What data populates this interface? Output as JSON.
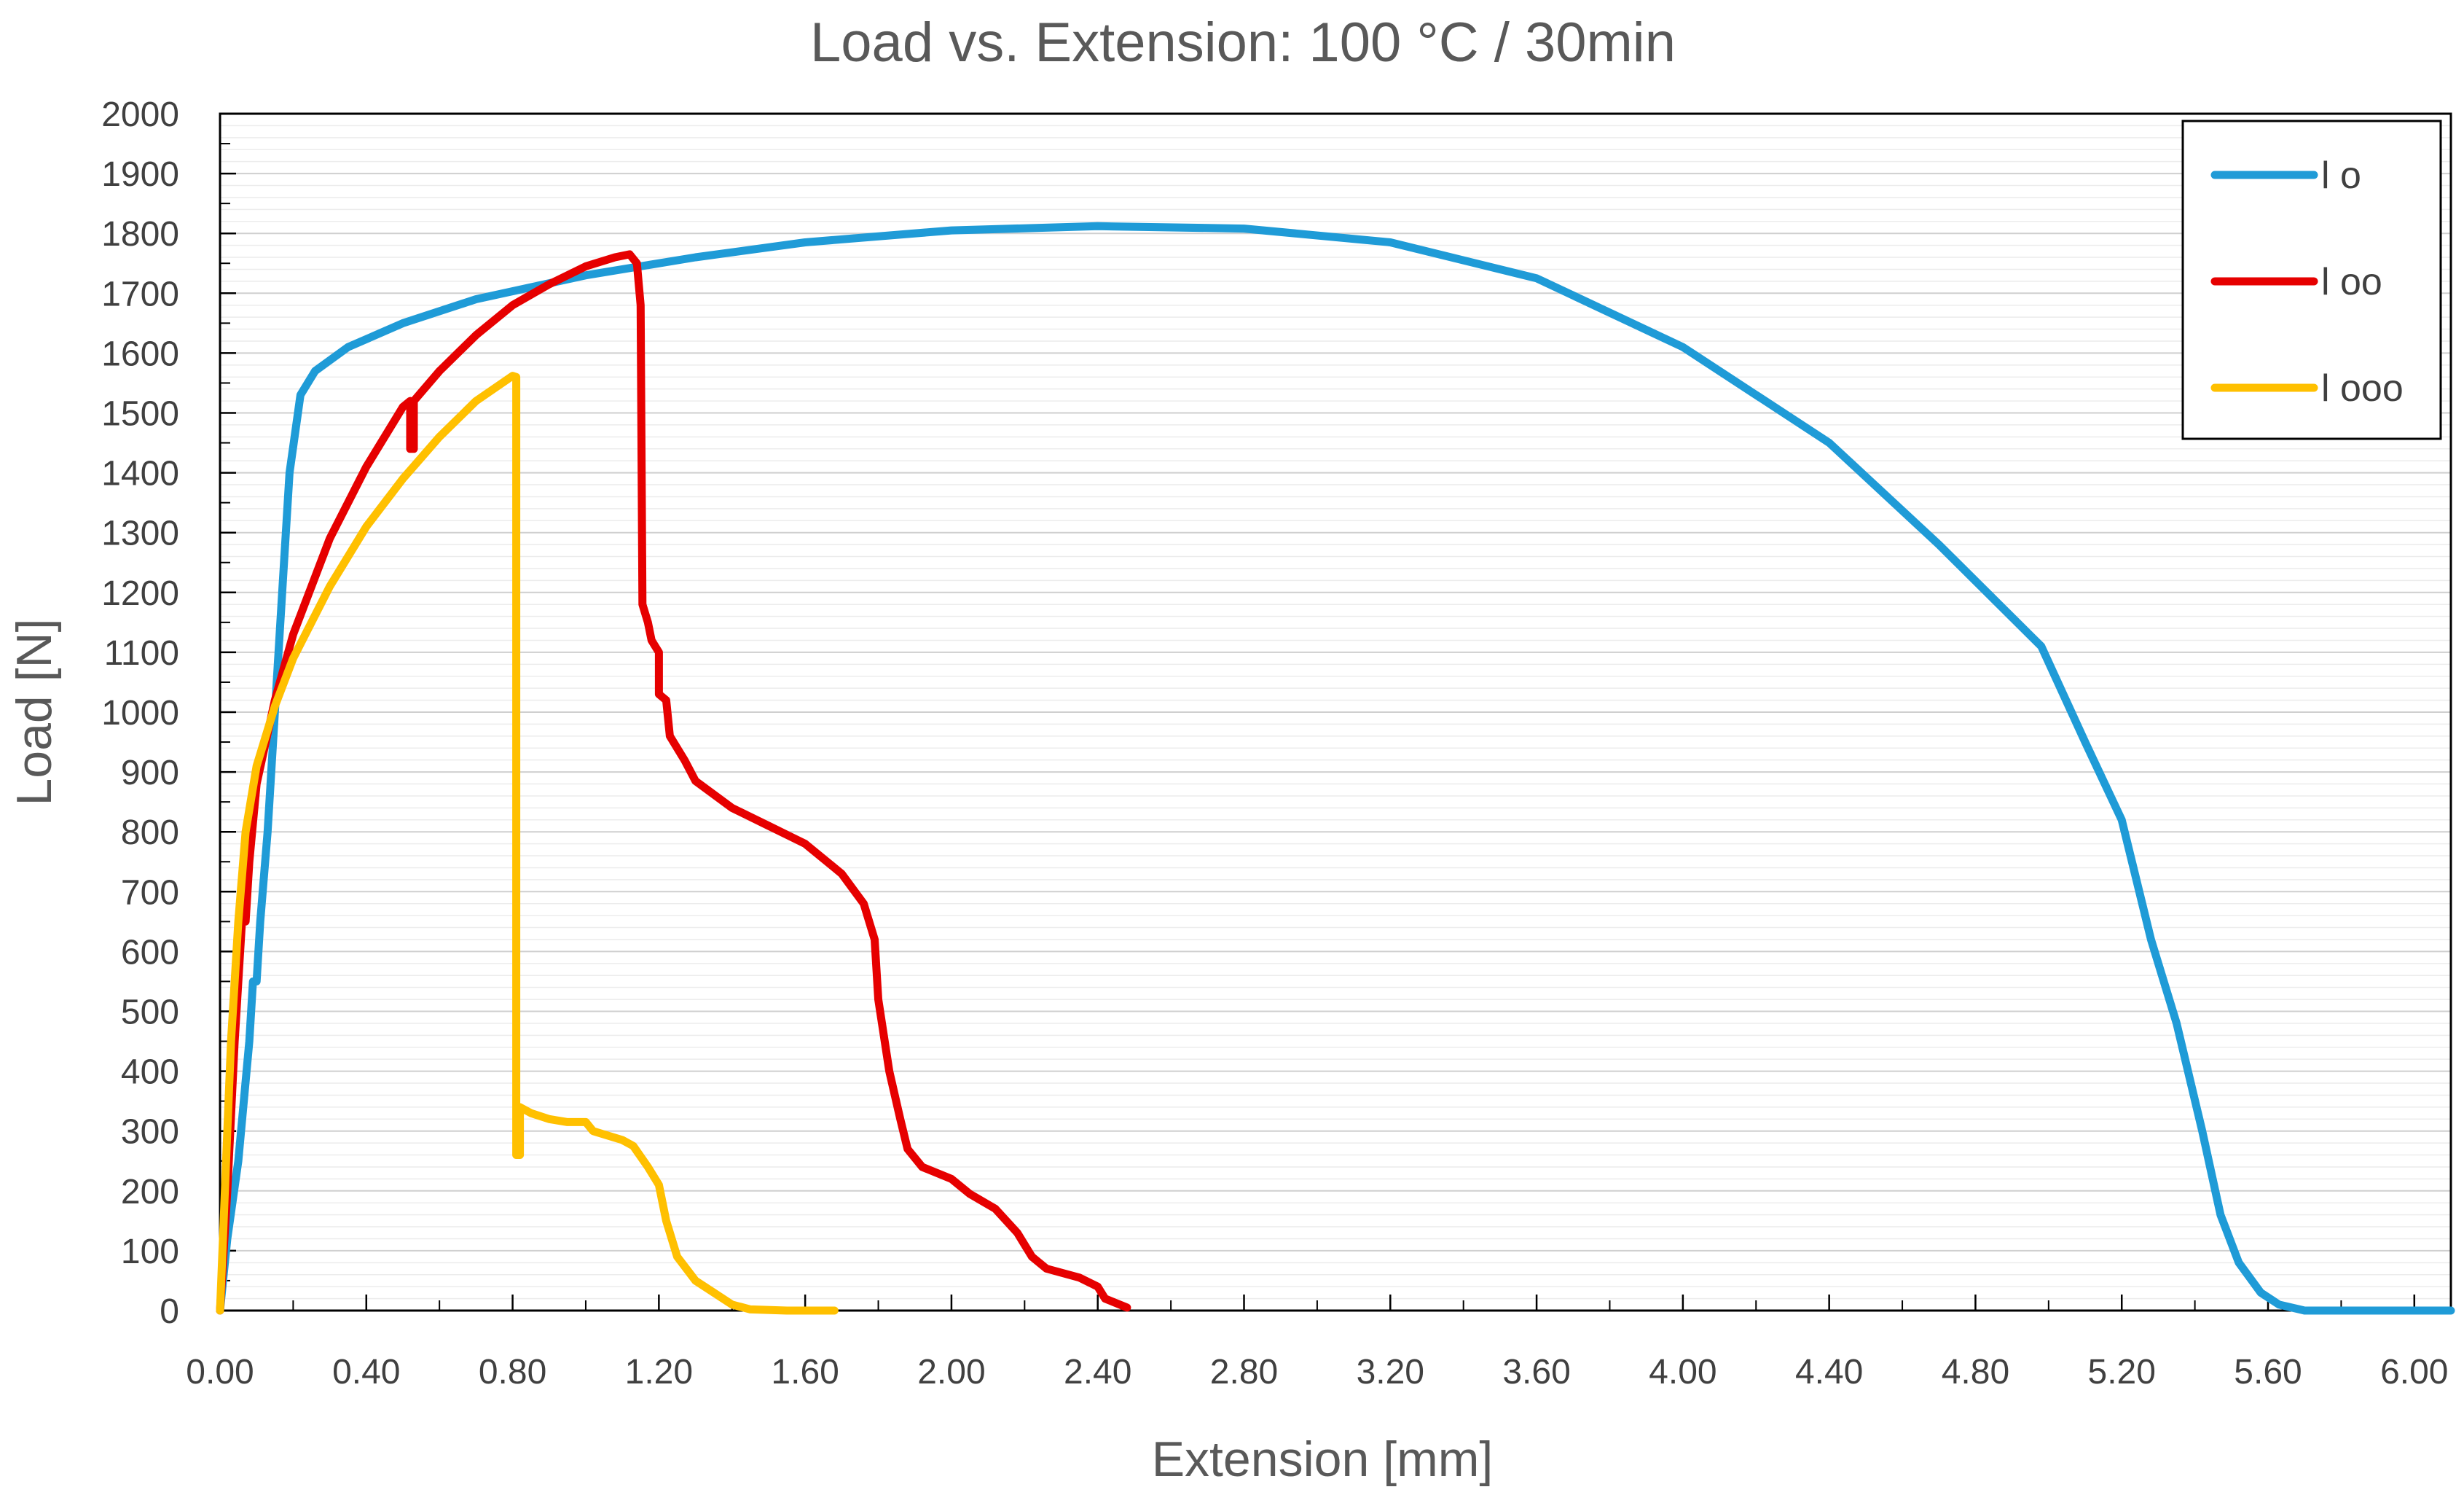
{
  "chart_data": {
    "type": "line",
    "title": "Load vs. Extension: 100 °C / 30min",
    "xlabel": "Extension [mm]",
    "ylabel": "Load [N]",
    "xlim": [
      0,
      6.1
    ],
    "ylim": [
      0,
      2000
    ],
    "x_ticks": [
      "0.00",
      "0.40",
      "0.80",
      "1.20",
      "1.60",
      "2.00",
      "2.40",
      "2.80",
      "3.20",
      "3.60",
      "4.00",
      "4.40",
      "4.80",
      "5.20",
      "5.60",
      "6.00"
    ],
    "x_tick_values": [
      0,
      0.4,
      0.8,
      1.2,
      1.6,
      2.0,
      2.4,
      2.8,
      3.2,
      3.6,
      4.0,
      4.4,
      4.8,
      5.2,
      5.6,
      6.0
    ],
    "y_ticks": [
      "0",
      "100",
      "200",
      "300",
      "400",
      "500",
      "600",
      "700",
      "800",
      "900",
      "1000",
      "1100",
      "1200",
      "1300",
      "1400",
      "1500",
      "1600",
      "1700",
      "1800",
      "1900",
      "2000"
    ],
    "y_tick_values": [
      0,
      100,
      200,
      300,
      400,
      500,
      600,
      700,
      800,
      900,
      1000,
      1100,
      1200,
      1300,
      1400,
      1500,
      1600,
      1700,
      1800,
      1900,
      2000
    ],
    "grid": "horizontal",
    "legend_position": "top-right",
    "series": [
      {
        "name": "l o",
        "color": "#1f9bd7",
        "points": [
          [
            0,
            0
          ],
          [
            0.02,
            120
          ],
          [
            0.05,
            250
          ],
          [
            0.08,
            450
          ],
          [
            0.09,
            550
          ],
          [
            0.1,
            550
          ],
          [
            0.11,
            650
          ],
          [
            0.13,
            800
          ],
          [
            0.15,
            1000
          ],
          [
            0.17,
            1200
          ],
          [
            0.19,
            1400
          ],
          [
            0.22,
            1530
          ],
          [
            0.26,
            1570
          ],
          [
            0.35,
            1610
          ],
          [
            0.5,
            1650
          ],
          [
            0.7,
            1690
          ],
          [
            1.0,
            1730
          ],
          [
            1.3,
            1760
          ],
          [
            1.6,
            1785
          ],
          [
            2.0,
            1805
          ],
          [
            2.4,
            1812
          ],
          [
            2.8,
            1808
          ],
          [
            3.2,
            1785
          ],
          [
            3.6,
            1725
          ],
          [
            4.0,
            1610
          ],
          [
            4.4,
            1450
          ],
          [
            4.7,
            1280
          ],
          [
            4.98,
            1110
          ],
          [
            5.1,
            950
          ],
          [
            5.2,
            820
          ],
          [
            5.28,
            620
          ],
          [
            5.35,
            480
          ],
          [
            5.42,
            300
          ],
          [
            5.47,
            160
          ],
          [
            5.52,
            80
          ],
          [
            5.58,
            30
          ],
          [
            5.63,
            10
          ],
          [
            5.7,
            0
          ],
          [
            6.1,
            0
          ]
        ]
      },
      {
        "name": "l oo",
        "color": "#e60000",
        "points": [
          [
            0,
            0
          ],
          [
            0.02,
            200
          ],
          [
            0.04,
            450
          ],
          [
            0.06,
            650
          ],
          [
            0.07,
            650
          ],
          [
            0.08,
            750
          ],
          [
            0.1,
            880
          ],
          [
            0.15,
            1020
          ],
          [
            0.2,
            1130
          ],
          [
            0.3,
            1290
          ],
          [
            0.4,
            1410
          ],
          [
            0.5,
            1510
          ],
          [
            0.52,
            1520
          ],
          [
            0.52,
            1440
          ],
          [
            0.53,
            1440
          ],
          [
            0.53,
            1520
          ],
          [
            0.6,
            1570
          ],
          [
            0.7,
            1630
          ],
          [
            0.8,
            1680
          ],
          [
            0.9,
            1715
          ],
          [
            1.0,
            1745
          ],
          [
            1.08,
            1760
          ],
          [
            1.12,
            1765
          ],
          [
            1.14,
            1750
          ],
          [
            1.15,
            1680
          ],
          [
            1.155,
            1180
          ],
          [
            1.17,
            1150
          ],
          [
            1.18,
            1120
          ],
          [
            1.2,
            1100
          ],
          [
            1.2,
            1030
          ],
          [
            1.22,
            1020
          ],
          [
            1.23,
            960
          ],
          [
            1.27,
            920
          ],
          [
            1.3,
            885
          ],
          [
            1.4,
            840
          ],
          [
            1.5,
            810
          ],
          [
            1.6,
            780
          ],
          [
            1.7,
            730
          ],
          [
            1.76,
            680
          ],
          [
            1.79,
            620
          ],
          [
            1.8,
            520
          ],
          [
            1.83,
            400
          ],
          [
            1.86,
            320
          ],
          [
            1.88,
            270
          ],
          [
            1.92,
            240
          ],
          [
            2.0,
            220
          ],
          [
            2.05,
            195
          ],
          [
            2.12,
            170
          ],
          [
            2.18,
            130
          ],
          [
            2.22,
            90
          ],
          [
            2.26,
            70
          ],
          [
            2.35,
            55
          ],
          [
            2.4,
            40
          ],
          [
            2.42,
            20
          ],
          [
            2.48,
            5
          ]
        ]
      },
      {
        "name": "l ooo",
        "color": "#ffc000",
        "points": [
          [
            0,
            0
          ],
          [
            0.01,
            150
          ],
          [
            0.02,
            300
          ],
          [
            0.03,
            450
          ],
          [
            0.05,
            650
          ],
          [
            0.07,
            800
          ],
          [
            0.1,
            910
          ],
          [
            0.15,
            1010
          ],
          [
            0.2,
            1090
          ],
          [
            0.3,
            1210
          ],
          [
            0.4,
            1310
          ],
          [
            0.5,
            1390
          ],
          [
            0.6,
            1460
          ],
          [
            0.7,
            1520
          ],
          [
            0.8,
            1562
          ],
          [
            0.81,
            1560
          ],
          [
            0.81,
            260
          ],
          [
            0.82,
            260
          ],
          [
            0.82,
            340
          ],
          [
            0.85,
            330
          ],
          [
            0.9,
            320
          ],
          [
            0.95,
            315
          ],
          [
            1.0,
            315
          ],
          [
            1.02,
            300
          ],
          [
            1.1,
            285
          ],
          [
            1.13,
            275
          ],
          [
            1.17,
            240
          ],
          [
            1.2,
            210
          ],
          [
            1.22,
            150
          ],
          [
            1.25,
            90
          ],
          [
            1.3,
            50
          ],
          [
            1.35,
            30
          ],
          [
            1.4,
            10
          ],
          [
            1.45,
            2
          ],
          [
            1.55,
            0
          ],
          [
            1.68,
            0
          ]
        ]
      }
    ]
  }
}
